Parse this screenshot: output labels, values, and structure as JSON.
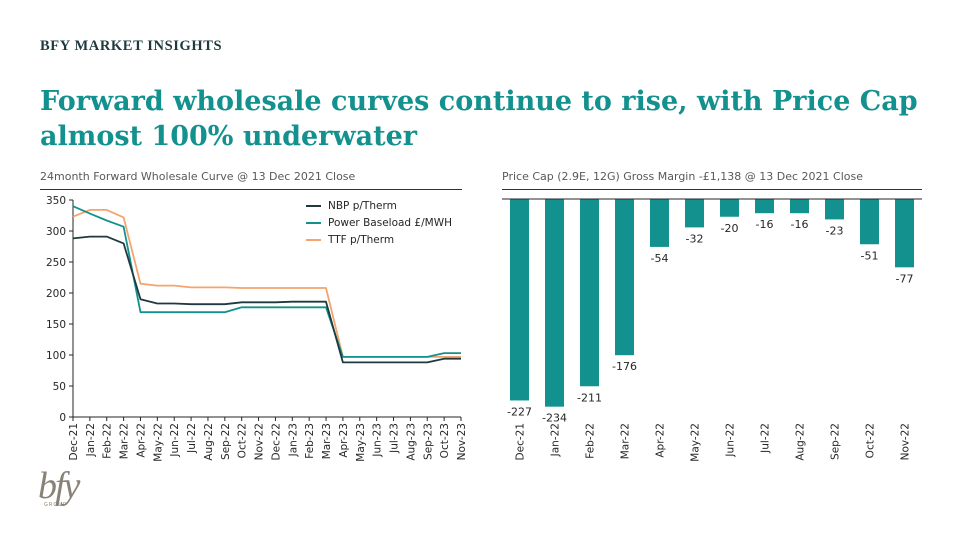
{
  "brand": "BFY MARKET INSIGHTS",
  "headline": "Forward wholesale curves continue to rise, with Price Cap almost 100% underwater",
  "logo": {
    "text": "bfy",
    "sub": "GROUP"
  },
  "colors": {
    "teal": "#13918e",
    "navy": "#1f3a3f",
    "orange": "#f4a46e"
  },
  "chart_data": [
    {
      "type": "line",
      "title": "24month Forward Wholesale Curve @ 13 Dec 2021 Close",
      "x": [
        "Dec-21",
        "Jan-22",
        "Feb-22",
        "Mar-22",
        "Apr-22",
        "May-22",
        "Jun-22",
        "Jul-22",
        "Aug-22",
        "Sep-22",
        "Oct-22",
        "Nov-22",
        "Dec-22",
        "Jan-23",
        "Feb-23",
        "Mar-23",
        "Apr-23",
        "May-23",
        "Jun-23",
        "Jul-23",
        "Aug-23",
        "Sep-23",
        "Oct-23",
        "Nov-23"
      ],
      "ylim": [
        0,
        350
      ],
      "yticks": [
        0,
        50,
        100,
        150,
        200,
        250,
        300,
        350
      ],
      "legend_position": "top-right",
      "grid": false,
      "series": [
        {
          "name": "NBP p/Therm",
          "color": "#1f3a3f",
          "values": [
            288,
            291,
            291,
            280,
            190,
            183,
            183,
            182,
            182,
            182,
            185,
            185,
            185,
            186,
            186,
            186,
            88,
            88,
            88,
            88,
            88,
            88,
            94,
            94
          ]
        },
        {
          "name": "Power Baseload £/MWH",
          "color": "#13918e",
          "values": [
            340,
            328,
            317,
            307,
            169,
            169,
            169,
            169,
            169,
            169,
            177,
            177,
            177,
            177,
            177,
            177,
            97,
            97,
            97,
            97,
            97,
            97,
            103,
            103
          ]
        },
        {
          "name": "TTF p/Therm",
          "color": "#f4a46e",
          "values": [
            323,
            334,
            334,
            322,
            215,
            212,
            212,
            209,
            209,
            209,
            208,
            208,
            208,
            208,
            208,
            208,
            97,
            97,
            97,
            97,
            97,
            97,
            97,
            97
          ]
        }
      ]
    },
    {
      "type": "bar",
      "title": "Price Cap (2.9E, 12G) Gross Margin -£1,138 @ 13 Dec 2021 Close",
      "categories": [
        "Dec-21",
        "Jan-22",
        "Feb-22",
        "Mar-22",
        "Apr-22",
        "May-22",
        "Jun-22",
        "Jul-22",
        "Aug-22",
        "Sep-22",
        "Oct-22",
        "Nov-22"
      ],
      "values": [
        -227,
        -234,
        -211,
        -176,
        -54,
        -32,
        -20,
        -16,
        -16,
        -23,
        -51,
        -77
      ],
      "ylim": [
        -240,
        0
      ],
      "color": "#13918e"
    }
  ]
}
